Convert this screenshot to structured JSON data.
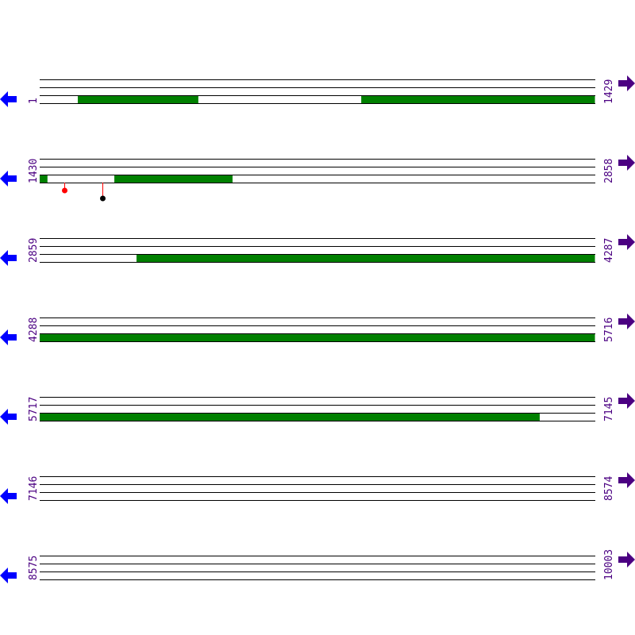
{
  "colors": {
    "feature": "#008000",
    "track_line": "#000000",
    "label": "#4b0082",
    "left_arrow": "#0000ff",
    "right_arrow": "#4b0082",
    "stem": "#ff0000"
  },
  "icons": {
    "left": "arrow-left-icon",
    "right": "arrow-right-icon"
  },
  "rows": [
    {
      "start": "1",
      "end": "1429",
      "s": 1,
      "e": 1429,
      "features": [
        [
          99,
          409
        ],
        [
          828,
          1429
        ]
      ],
      "markers": []
    },
    {
      "start": "1430",
      "end": "2858",
      "s": 1430,
      "e": 2858,
      "features": [
        [
          1430,
          1450
        ],
        [
          1622,
          1926
        ]
      ],
      "markers": [
        {
          "pos": 1493,
          "color": "#ff0000",
          "level": 1
        },
        {
          "pos": 1591,
          "color": "#000000",
          "level": 2
        }
      ]
    },
    {
      "start": "2859",
      "end": "4287",
      "s": 2859,
      "e": 4287,
      "features": [
        [
          3108,
          4287
        ]
      ],
      "markers": []
    },
    {
      "start": "4288",
      "end": "5716",
      "s": 4288,
      "e": 5716,
      "features": [
        [
          4288,
          5716
        ]
      ],
      "markers": []
    },
    {
      "start": "5717",
      "end": "7145",
      "s": 5717,
      "e": 7145,
      "features": [
        [
          5717,
          7003
        ]
      ],
      "markers": []
    },
    {
      "start": "7146",
      "end": "8574",
      "s": 7146,
      "e": 8574,
      "features": [],
      "markers": []
    },
    {
      "start": "8575",
      "end": "10003",
      "s": 8575,
      "e": 10003,
      "features": [],
      "markers": []
    }
  ]
}
